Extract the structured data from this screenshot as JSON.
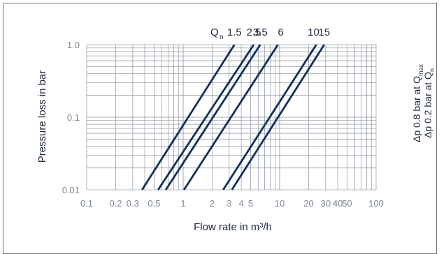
{
  "chart_data": {
    "type": "line",
    "xlabel": "Flow rate in m³/h",
    "ylabel": "Pressure loss in bar",
    "x_scale": "log",
    "y_scale": "log",
    "xlim": [
      0.1,
      100
    ],
    "ylim": [
      0.01,
      1.0
    ],
    "grid": true,
    "x_ticks": [
      {
        "value": 0.1,
        "label": "0.1"
      },
      {
        "value": 0.2,
        "label": "0.2"
      },
      {
        "value": 0.3,
        "label": "0.3"
      },
      {
        "value": 0.5,
        "label": "0.5"
      },
      {
        "value": 1,
        "label": "1"
      },
      {
        "value": 2,
        "label": "2"
      },
      {
        "value": 3,
        "label": "3"
      },
      {
        "value": 4,
        "label": "4"
      },
      {
        "value": 5,
        "label": "5"
      },
      {
        "value": 10,
        "label": "10"
      },
      {
        "value": 20,
        "label": "20"
      },
      {
        "value": 30,
        "label": "30"
      },
      {
        "value": 40,
        "label": "40"
      },
      {
        "value": 50,
        "label": "50"
      },
      {
        "value": 100,
        "label": "100"
      }
    ],
    "y_ticks": [
      {
        "value": 1.0,
        "label": "1.0"
      },
      {
        "value": 0.1,
        "label": "0.1"
      },
      {
        "value": 0.01,
        "label": "0.01"
      }
    ],
    "qn_prefix": "Q",
    "qn_subscript": "n",
    "series": [
      {
        "name": "1.5",
        "x": [
          0.375,
          3.4
        ],
        "y": [
          0.01,
          1.0
        ]
      },
      {
        "name": "2.5",
        "x": [
          0.55,
          5.4
        ],
        "y": [
          0.01,
          1.0
        ]
      },
      {
        "name": "3.5",
        "x": [
          0.66,
          6.3
        ],
        "y": [
          0.01,
          1.0
        ]
      },
      {
        "name": "6",
        "x": [
          1.02,
          9.6
        ],
        "y": [
          0.01,
          1.0
        ]
      },
      {
        "name": "10",
        "x": [
          2.6,
          24
        ],
        "y": [
          0.01,
          1.0
        ]
      },
      {
        "name": "15",
        "x": [
          3.2,
          29
        ],
        "y": [
          0.01,
          1.0
        ]
      }
    ],
    "side_notes": {
      "line1_main": "Δp 0.8 bar at Q",
      "line1_sub": "max",
      "line2_main": "Δp 0.2 bar at Q",
      "line2_sub": "n"
    },
    "colors": {
      "series": "#12305a",
      "grid": "#9aa1ab",
      "tick_text": "#7d8796"
    }
  }
}
